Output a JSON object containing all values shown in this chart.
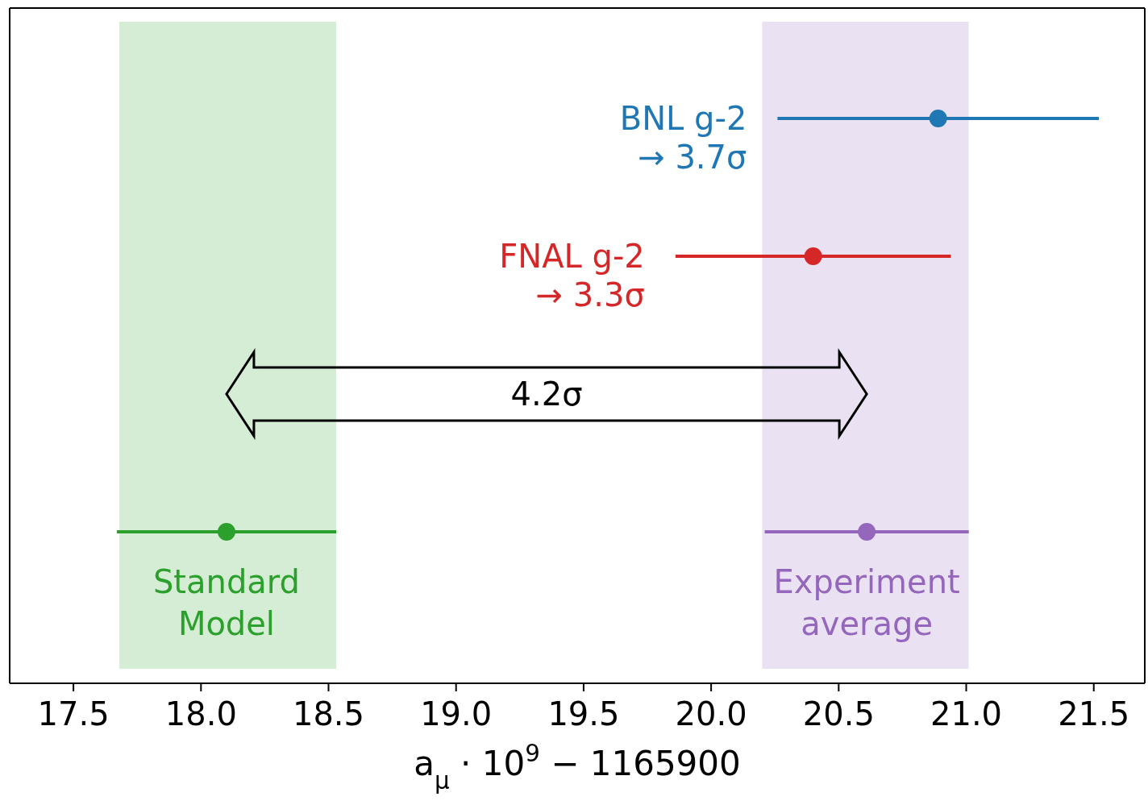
{
  "chart_data": {
    "type": "scatter",
    "orientation": "horizontal",
    "xlabel": "a$_{μ}$ · 10$^{9}$ − 1165900",
    "categories": [
      null,
      null,
      null,
      null
    ],
    "xlim": [
      17.25,
      21.7
    ],
    "xticks": [
      {
        "value": 17.5,
        "label": "17.5"
      },
      {
        "value": 18,
        "label": "18.0"
      },
      {
        "value": 18.5,
        "label": "18.5"
      },
      {
        "value": 19,
        "label": "19.0"
      },
      {
        "value": 19.5,
        "label": "19.5"
      },
      {
        "value": 20,
        "label": "20.0"
      },
      {
        "value": 20.5,
        "label": "20.5"
      },
      {
        "value": 21,
        "label": "21.0"
      },
      {
        "value": 21.5,
        "label": "21.5"
      }
    ],
    "grid": false,
    "marker": "circle",
    "tick_labels": "x",
    "series": [
      {
        "name": "BNL g-2",
        "color": "#1f77b4",
        "values": [
          20.89,
          null,
          null,
          null
        ],
        "errors": [
          0.63,
          null,
          null,
          null
        ]
      },
      {
        "name": "FNAL g-2",
        "color": "#d62728",
        "values": [
          null,
          20.4,
          null,
          null
        ],
        "errors": [
          null,
          0.54,
          null,
          null
        ]
      },
      {
        "name": "Standard Model",
        "color": "#2ca02c",
        "values": [
          null,
          null,
          null,
          18.1
        ],
        "errors": [
          null,
          null,
          null,
          0.43
        ]
      },
      {
        "name": "Experiment average",
        "color": "#9467bd",
        "values": [
          null,
          null,
          null,
          20.61
        ],
        "errors": [
          null,
          null,
          null,
          0.4
        ]
      }
    ],
    "bands": [
      {
        "axis": "x",
        "from": 17.68,
        "to": 18.53,
        "color": "#2ca02c"
      },
      {
        "axis": "x",
        "from": 20.2,
        "to": 21.01,
        "color": "#9467bd"
      }
    ],
    "annotations": [
      "→ 3.7σ",
      "→ 3.3σ",
      "4.2σ"
    ]
  }
}
